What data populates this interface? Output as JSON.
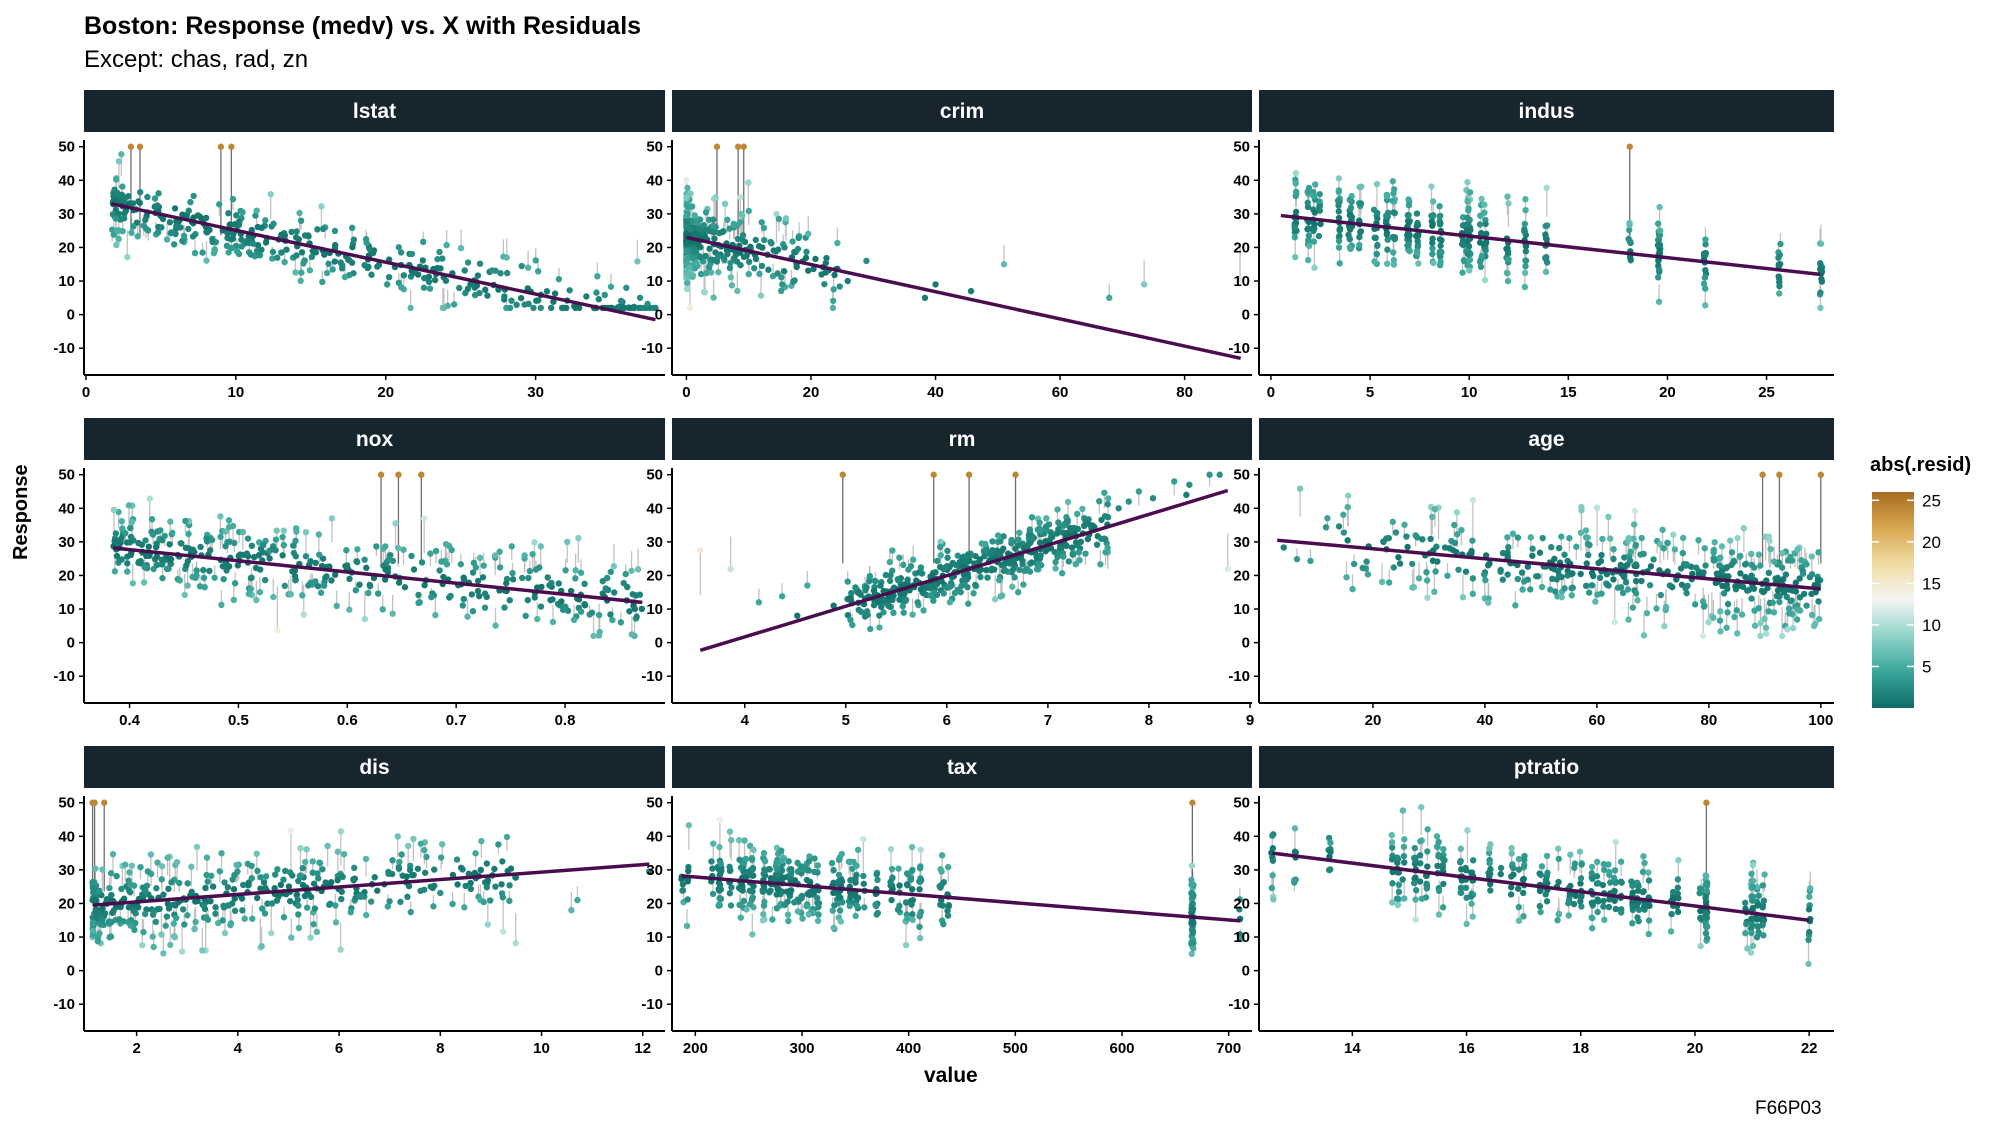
{
  "header": {
    "title": "Boston: Response (medv) vs. X with Residuals",
    "subtitle": "Except: chas, rad, zn",
    "caption": "F66P03"
  },
  "colors": {
    "strip_bg": "#17252f",
    "fit_line": "#4a0d4f",
    "residual_segment": "#b8b8b8",
    "gradient": [
      "#0e6d66",
      "#3aa699",
      "#8fd3c9",
      "#f5f5f5",
      "#f0dca3",
      "#d8a850",
      "#a86a1f"
    ]
  },
  "chart_data": {
    "type": "scatter",
    "xlabel": "value",
    "ylabel": "Response",
    "ylim": [
      -15,
      52
    ],
    "y_ticks": [
      -10,
      0,
      10,
      20,
      30,
      40,
      50
    ],
    "grid": false,
    "legend": {
      "title": "abs(.resid)",
      "placement": "right",
      "range": [
        0,
        26
      ],
      "ticks": [
        5,
        10,
        15,
        20,
        25
      ]
    },
    "panels": [
      {
        "name": "lstat",
        "xlim": [
          0,
          38.5
        ],
        "x_ticks": [
          0,
          10,
          20,
          30
        ],
        "fit": {
          "x": [
            1.7,
            38.0
          ],
          "y": [
            33.0,
            -1.5
          ]
        },
        "points": {
          "x_min": 1.7,
          "x_max": 38,
          "x_skew": 1.5,
          "shape": "linear",
          "base": 34,
          "slope": -0.95,
          "noise": 4.5,
          "n": 420,
          "seed": 11
        },
        "highlight": [
          [
            3.0,
            50
          ],
          [
            3.6,
            50
          ],
          [
            9.0,
            50
          ],
          [
            9.7,
            50
          ]
        ]
      },
      {
        "name": "crim",
        "xlim": [
          -2,
          90.5
        ],
        "x_ticks": [
          0,
          20,
          40,
          60,
          80
        ],
        "fit": {
          "x": [
            0,
            89
          ],
          "y": [
            23.0,
            -13.0
          ]
        },
        "points": {
          "x_min": 0,
          "x_max": 25,
          "x_skew": 4,
          "shape": "linear",
          "base": 23,
          "slope": -0.42,
          "noise": 6,
          "n": 380,
          "seed": 23
        },
        "extra": [
          [
            38.3,
            5
          ],
          [
            40,
            9
          ],
          [
            51,
            15
          ],
          [
            67.9,
            5
          ],
          [
            73.5,
            9
          ],
          [
            88.9,
            10.4
          ],
          [
            45.7,
            7
          ],
          [
            25.9,
            10
          ],
          [
            28.9,
            16
          ]
        ],
        "highlight": [
          [
            4.9,
            50
          ],
          [
            8.3,
            50
          ],
          [
            9.2,
            50
          ]
        ]
      },
      {
        "name": "indus",
        "xlim": [
          -0.5,
          28.3
        ],
        "x_ticks": [
          0,
          5,
          10,
          15,
          20,
          25
        ],
        "fit": {
          "x": [
            0.5,
            27.7
          ],
          "y": [
            29.5,
            12.0
          ]
        },
        "points": {
          "x_min": 0.5,
          "x_max": 27.7,
          "x_skew": 1,
          "shape": "discrete",
          "levels": [
            2.18,
            2.46,
            3.44,
            3.97,
            4.05,
            5.19,
            5.86,
            6.2,
            6.91,
            7.38,
            8.14,
            8.56,
            9.69,
            9.9,
            10.01,
            10.59,
            11.93,
            12.83,
            13.89,
            18.1,
            19.58,
            21.89,
            25.65,
            27.74,
            1.25,
            1.89,
            4.49,
            5.32,
            6.96,
            10.81
          ],
          "base": 30,
          "slope": -0.64,
          "noise": 6,
          "n": 430,
          "seed": 37
        },
        "highlight": [
          [
            18.1,
            50
          ]
        ]
      },
      {
        "name": "nox",
        "xlim": [
          0.36,
          0.89
        ],
        "x_ticks": [
          0.4,
          0.5,
          0.6,
          0.7,
          0.8
        ],
        "fit": {
          "x": [
            0.385,
            0.871
          ],
          "y": [
            28.2,
            12.0
          ]
        },
        "points": {
          "x_min": 0.385,
          "x_max": 0.871,
          "x_skew": 1.3,
          "shape": "linear",
          "base": 41,
          "slope": -33,
          "noise": 6,
          "n": 430,
          "seed": 41
        },
        "highlight": [
          [
            0.631,
            50
          ],
          [
            0.647,
            50
          ],
          [
            0.668,
            50
          ]
        ]
      },
      {
        "name": "rm",
        "xlim": [
          3.3,
          9.0
        ],
        "x_ticks": [
          4,
          5,
          6,
          7,
          8,
          9
        ],
        "fit": {
          "x": [
            3.56,
            8.78
          ],
          "y": [
            -2.3,
            45.3
          ]
        },
        "points": {
          "x_min": 5.0,
          "x_max": 7.6,
          "x_skew": 1,
          "shape": "linear",
          "base": -34.6,
          "slope": 9.1,
          "noise": 4.5,
          "n": 440,
          "seed": 53
        },
        "extra": [
          [
            3.56,
            27.5
          ],
          [
            3.86,
            21.9
          ],
          [
            4.14,
            12
          ],
          [
            4.37,
            13.8
          ],
          [
            4.52,
            8
          ],
          [
            4.62,
            17
          ],
          [
            4.88,
            11
          ],
          [
            7.8,
            42
          ],
          [
            7.9,
            45
          ],
          [
            8.04,
            43
          ],
          [
            8.25,
            48
          ],
          [
            8.37,
            44
          ],
          [
            8.4,
            47
          ],
          [
            8.6,
            50
          ],
          [
            8.7,
            50
          ],
          [
            8.78,
            21.9
          ],
          [
            7.42,
            35
          ],
          [
            7.7,
            40
          ]
        ],
        "highlight": [
          [
            4.97,
            50
          ],
          [
            5.87,
            50
          ],
          [
            6.22,
            50
          ],
          [
            6.68,
            50
          ]
        ]
      },
      {
        "name": "age",
        "xlim": [
          0,
          102
        ],
        "x_ticks": [
          20,
          40,
          60,
          80,
          100
        ],
        "fit": {
          "x": [
            2.9,
            100
          ],
          "y": [
            30.5,
            16.0
          ]
        },
        "points": {
          "x_min": 2.9,
          "x_max": 100,
          "x_skew": 0.55,
          "shape": "linear",
          "base": 31,
          "slope": -0.15,
          "noise": 7,
          "n": 460,
          "seed": 61
        },
        "highlight": [
          [
            89.6,
            50
          ],
          [
            92.6,
            50
          ],
          [
            100,
            50
          ]
        ]
      },
      {
        "name": "dis",
        "xlim": [
          1.0,
          12.4
        ],
        "x_ticks": [
          2,
          4,
          6,
          8,
          10,
          12
        ],
        "fit": {
          "x": [
            1.13,
            12.13
          ],
          "y": [
            19.5,
            31.7
          ]
        },
        "points": {
          "x_min": 1.13,
          "x_max": 9.5,
          "x_skew": 1.8,
          "shape": "linear",
          "base": 17,
          "slope": 1.3,
          "noise": 6,
          "n": 440,
          "seed": 71
        },
        "extra": [
          [
            10.59,
            18
          ],
          [
            10.71,
            21
          ],
          [
            12.13,
            29.5
          ],
          [
            9.22,
            23
          ],
          [
            9.09,
            25
          ]
        ],
        "highlight": [
          [
            1.13,
            50
          ],
          [
            1.17,
            50
          ],
          [
            1.36,
            50
          ]
        ]
      },
      {
        "name": "tax",
        "xlim": [
          180,
          720
        ],
        "x_ticks": [
          200,
          300,
          400,
          500,
          600,
          700
        ],
        "fit": {
          "x": [
            187,
            711
          ],
          "y": [
            28.2,
            14.8
          ]
        },
        "points": {
          "x_min": 187,
          "x_max": 711,
          "x_skew": 1,
          "shape": "discrete",
          "levels": [
            188,
            193,
            216,
            222,
            223,
            224,
            233,
            242,
            243,
            245,
            247,
            252,
            254,
            264,
            265,
            270,
            273,
            276,
            277,
            279,
            280,
            281,
            284,
            287,
            289,
            293,
            296,
            300,
            304,
            305,
            307,
            311,
            315,
            329,
            330,
            334,
            335,
            337,
            345,
            348,
            351,
            352,
            358,
            370,
            384,
            391,
            398,
            403,
            411,
            430,
            432,
            437,
            666,
            666,
            666,
            666,
            666,
            666,
            711
          ],
          "base": 33,
          "slope": -0.025,
          "noise": 6,
          "n": 440,
          "seed": 83
        },
        "highlight": [
          [
            666,
            50
          ]
        ]
      },
      {
        "name": "ptratio",
        "xlim": [
          12.4,
          22.4
        ],
        "x_ticks": [
          14,
          16,
          18,
          20,
          22
        ],
        "fit": {
          "x": [
            12.6,
            22.0
          ],
          "y": [
            35.0,
            15.0
          ]
        },
        "points": {
          "x_min": 12.6,
          "x_max": 22,
          "x_skew": 1,
          "shape": "discrete",
          "levels": [
            12.6,
            13,
            13.6,
            14.7,
            14.8,
            14.9,
            15.1,
            15.2,
            15.3,
            15.5,
            15.6,
            15.9,
            16,
            16.1,
            16.4,
            16.6,
            16.8,
            16.9,
            17,
            17.3,
            17.4,
            17.6,
            17.8,
            17.9,
            18,
            18.2,
            18.3,
            18.4,
            18.5,
            18.6,
            18.7,
            18.9,
            19,
            19.1,
            19.2,
            19.6,
            19.7,
            20.1,
            20.2,
            20.2,
            20.2,
            20.2,
            20.9,
            21,
            21,
            21.1,
            21.2,
            22
          ],
          "base": 62,
          "slope": -2.1,
          "noise": 6,
          "n": 440,
          "seed": 97
        },
        "highlight": [
          [
            20.2,
            50
          ]
        ]
      }
    ]
  }
}
